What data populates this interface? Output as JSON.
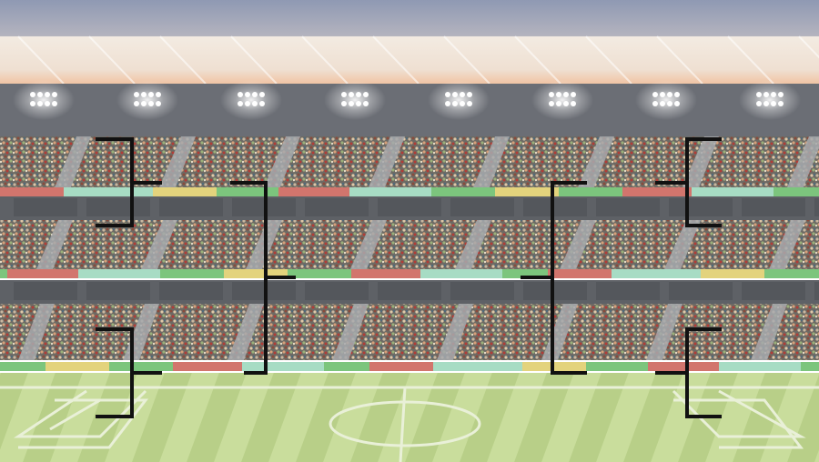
{
  "scene": {
    "type": "tournament-bracket-background",
    "teams_per_side": 4,
    "rounds_per_side": 2,
    "floodlights": 8,
    "stand_tiers": 3
  },
  "colors": {
    "sky_top": "#8f99b3",
    "sky_bottom": "#b9b7c0",
    "roof": "#efe3d7",
    "roof_glow": "#f2c7a8",
    "light_band": "#6b6e75",
    "floodlight": "#ffffff",
    "stand": "#7b7f85",
    "aisle": "#a7a9ad",
    "wall": "#5e6166",
    "pitch_light": "#c8dc9a",
    "pitch_dark": "#b5cd84",
    "pitch_line": "#e9f0d8",
    "bracket_line": "#111111",
    "band_red": "#d2756d",
    "band_mint": "#a7dcc4",
    "band_yellow": "#e3d37d",
    "band_green": "#7cc57d"
  }
}
